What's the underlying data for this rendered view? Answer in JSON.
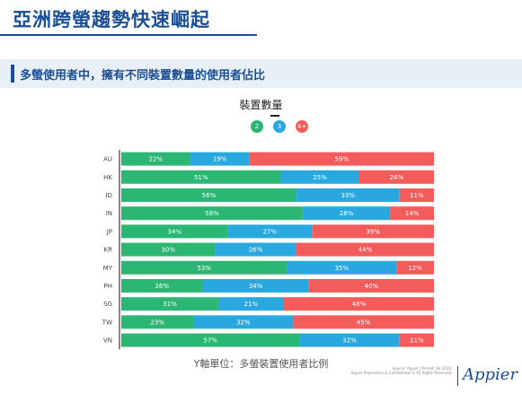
{
  "page": {
    "title": "亞洲跨螢趨勢快速崛起",
    "subtitle": "多螢使用者中，擁有不同裝置數量的使用者佔比",
    "footnote": "Y軸單位：多螢裝置使用者比例",
    "source_line1": "Source: Appier | Period: 1H 2016",
    "source_line2": "Appier Proprietary & Confidential © All Rights Reserved",
    "logo_text": "Appier"
  },
  "colors": {
    "green": "#2bb673",
    "blue": "#29a8e0",
    "red": "#f45c5c",
    "brand": "#1a4f95"
  },
  "chart_data": {
    "type": "bar",
    "orientation": "horizontal",
    "stacked": true,
    "legend_title": "裝置數量",
    "legend_placement": "top-center",
    "categories": [
      "AU",
      "HK",
      "ID",
      "IN",
      "JP",
      "KR",
      "MY",
      "PH",
      "SG",
      "TW",
      "VN"
    ],
    "series": [
      {
        "name": "2",
        "color": "#2bb673",
        "values": [
          22,
          51,
          56,
          58,
          34,
          30,
          53,
          26,
          31,
          23,
          57
        ]
      },
      {
        "name": "3",
        "color": "#29a8e0",
        "values": [
          19,
          25,
          33,
          28,
          27,
          26,
          35,
          34,
          21,
          32,
          32
        ]
      },
      {
        "name": "4+",
        "color": "#f45c5c",
        "values": [
          59,
          24,
          11,
          14,
          39,
          44,
          12,
          40,
          48,
          45,
          11
        ]
      }
    ],
    "value_suffix": "%",
    "xlim": [
      0,
      100
    ],
    "grid": false
  }
}
